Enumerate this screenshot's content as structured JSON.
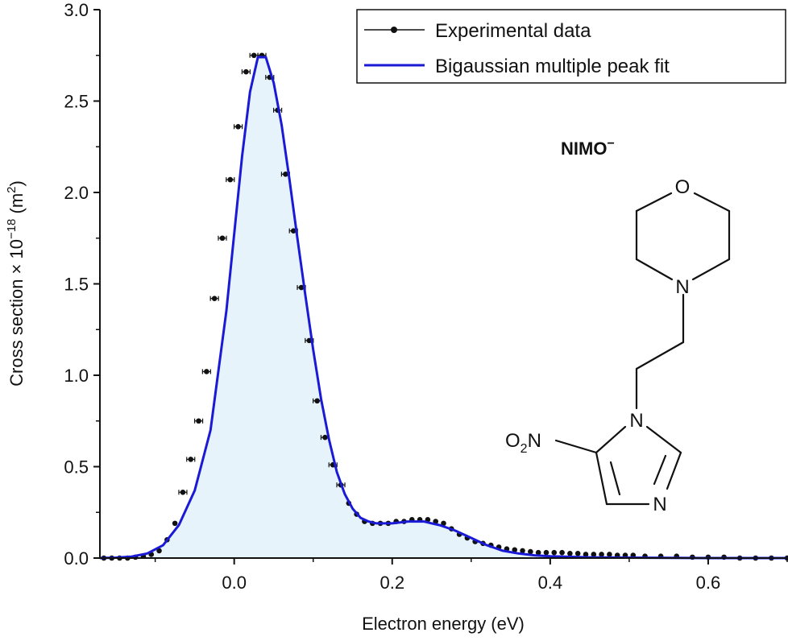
{
  "chart_data": {
    "type": "scatter",
    "xlabel": "Electron energy (eV)",
    "ylabel": {
      "prefix": "Cross section × 10",
      "exponent": "−18",
      "unit_open": " (m",
      "unit_exp": "2",
      "unit_close": ")"
    },
    "xlim": [
      -0.17,
      0.7
    ],
    "ylim": [
      0,
      3.0
    ],
    "xticks": [
      {
        "value": 0.0,
        "label": "0.0"
      },
      {
        "value": 0.2,
        "label": "0.2"
      },
      {
        "value": 0.4,
        "label": "0.4"
      },
      {
        "value": 0.6,
        "label": "0.6"
      }
    ],
    "yticks": [
      {
        "value": 0.0,
        "label": "0.0"
      },
      {
        "value": 0.5,
        "label": "0.5"
      },
      {
        "value": 1.0,
        "label": "1.0"
      },
      {
        "value": 1.5,
        "label": "1.5"
      },
      {
        "value": 2.0,
        "label": "2.0"
      },
      {
        "value": 2.5,
        "label": "2.5"
      },
      {
        "value": 3.0,
        "label": "3.0"
      }
    ],
    "grid": false,
    "legend": {
      "position": "top-right",
      "entries": [
        {
          "label": "Experimental data",
          "style": "points",
          "color": "#111111"
        },
        {
          "label": "Bigaussian multiple peak fit",
          "style": "line",
          "color": "#1a1ad6"
        }
      ]
    },
    "series": [
      {
        "name": "Experimental data",
        "color": "#111111",
        "x": [
          -0.165,
          -0.155,
          -0.145,
          -0.135,
          -0.125,
          -0.115,
          -0.105,
          -0.095,
          -0.085,
          -0.075,
          -0.065,
          -0.055,
          -0.045,
          -0.035,
          -0.025,
          -0.015,
          -0.005,
          0.005,
          0.015,
          0.025,
          0.035,
          0.045,
          0.055,
          0.065,
          0.075,
          0.085,
          0.095,
          0.105,
          0.115,
          0.125,
          0.135,
          0.145,
          0.155,
          0.165,
          0.175,
          0.185,
          0.195,
          0.205,
          0.215,
          0.225,
          0.235,
          0.245,
          0.255,
          0.265,
          0.275,
          0.285,
          0.295,
          0.305,
          0.315,
          0.325,
          0.335,
          0.345,
          0.355,
          0.365,
          0.375,
          0.385,
          0.395,
          0.405,
          0.415,
          0.425,
          0.435,
          0.445,
          0.455,
          0.465,
          0.475,
          0.485,
          0.495,
          0.505,
          0.52,
          0.54,
          0.56,
          0.58,
          0.6,
          0.62,
          0.64,
          0.66,
          0.68,
          0.7
        ],
        "y": [
          0.0,
          0.0,
          0.0,
          0.0,
          0.005,
          0.01,
          0.02,
          0.04,
          0.1,
          0.19,
          0.36,
          0.54,
          0.75,
          1.02,
          1.42,
          1.75,
          2.07,
          2.36,
          2.66,
          2.75,
          2.75,
          2.63,
          2.45,
          2.1,
          1.79,
          1.48,
          1.19,
          0.86,
          0.66,
          0.51,
          0.4,
          0.3,
          0.24,
          0.2,
          0.19,
          0.19,
          0.19,
          0.2,
          0.2,
          0.21,
          0.21,
          0.21,
          0.2,
          0.19,
          0.16,
          0.13,
          0.11,
          0.09,
          0.08,
          0.07,
          0.06,
          0.05,
          0.045,
          0.04,
          0.035,
          0.03,
          0.03,
          0.03,
          0.03,
          0.025,
          0.025,
          0.02,
          0.02,
          0.02,
          0.02,
          0.015,
          0.015,
          0.015,
          0.01,
          0.01,
          0.01,
          0.005,
          0.005,
          0.005,
          0.0,
          0.0,
          0.0,
          0.0
        ]
      },
      {
        "name": "Bigaussian multiple peak fit",
        "color": "#1a1ad6",
        "fill": "#e6f3fb",
        "x": [
          -0.17,
          -0.15,
          -0.13,
          -0.11,
          -0.09,
          -0.07,
          -0.05,
          -0.03,
          -0.01,
          0.01,
          0.02,
          0.03,
          0.04,
          0.05,
          0.06,
          0.07,
          0.08,
          0.09,
          0.1,
          0.11,
          0.12,
          0.13,
          0.14,
          0.15,
          0.16,
          0.17,
          0.18,
          0.19,
          0.2,
          0.21,
          0.22,
          0.23,
          0.24,
          0.25,
          0.26,
          0.27,
          0.28,
          0.29,
          0.3,
          0.31,
          0.32,
          0.33,
          0.34,
          0.36,
          0.38,
          0.4,
          0.45,
          0.5,
          0.55,
          0.6,
          0.65,
          0.7
        ],
        "y": [
          0.0,
          0.002,
          0.008,
          0.025,
          0.07,
          0.18,
          0.37,
          0.7,
          1.35,
          2.2,
          2.55,
          2.74,
          2.74,
          2.6,
          2.37,
          2.07,
          1.75,
          1.44,
          1.14,
          0.87,
          0.65,
          0.47,
          0.35,
          0.27,
          0.22,
          0.2,
          0.19,
          0.19,
          0.19,
          0.195,
          0.2,
          0.2,
          0.2,
          0.19,
          0.18,
          0.165,
          0.15,
          0.13,
          0.11,
          0.09,
          0.07,
          0.055,
          0.04,
          0.025,
          0.015,
          0.01,
          0.004,
          0.002,
          0.001,
          0.0,
          0.0,
          0.0
        ]
      }
    ]
  },
  "molecule": {
    "title": "NIMO",
    "charge": "−",
    "atoms": {
      "oxygen": "O",
      "morpholine_nitrogen": "N",
      "imidazole_n1": "N",
      "imidazole_n3": "N",
      "nitro_o": "O",
      "nitro_sub": "2",
      "nitro_n": "N"
    }
  }
}
